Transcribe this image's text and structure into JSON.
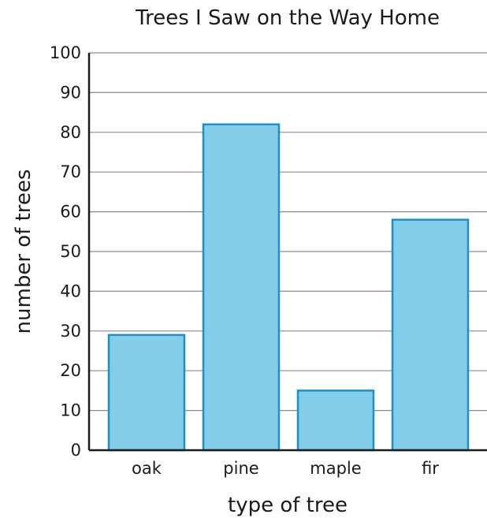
{
  "chart_data": {
    "type": "bar",
    "title": "Trees I Saw on the Way Home",
    "xlabel": "type of tree",
    "ylabel": "number of trees",
    "categories": [
      "oak",
      "pine",
      "maple",
      "fir"
    ],
    "values": [
      29,
      82,
      15,
      58
    ],
    "ylim": [
      0,
      100
    ],
    "yticks": [
      "0",
      "10",
      "20",
      "30",
      "40",
      "50",
      "60",
      "70",
      "80",
      "90",
      "100"
    ],
    "grid": true,
    "bar_color": "#82cdea",
    "bar_edge_color": "#1d8fc4",
    "grid_color": "#8c8c8c",
    "axis_color": "#1a1a1a"
  }
}
